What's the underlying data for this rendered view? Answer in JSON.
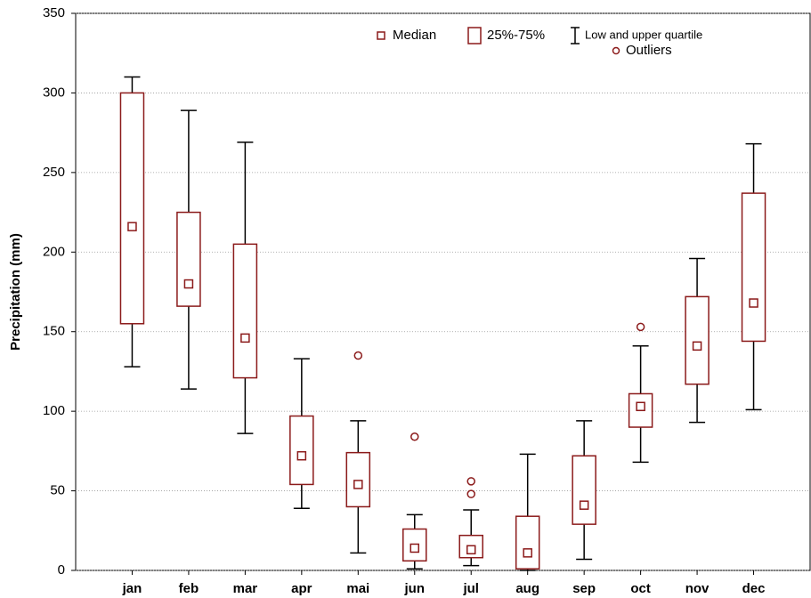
{
  "chart_data": {
    "type": "box",
    "y_label": "Precipitation (mm)",
    "categories": [
      "jan",
      "feb",
      "mar",
      "apr",
      "mai",
      "jun",
      "jul",
      "aug",
      "sep",
      "oct",
      "nov",
      "dec"
    ],
    "median": [
      216,
      180,
      146,
      72,
      54,
      14,
      13,
      11,
      41,
      103,
      141,
      168
    ],
    "q1": [
      155,
      166,
      121,
      54,
      40,
      6,
      8,
      1,
      29,
      90,
      117,
      144
    ],
    "q3": [
      300,
      225,
      205,
      97,
      74,
      26,
      22,
      34,
      72,
      111,
      172,
      237
    ],
    "low": [
      128,
      114,
      86,
      39,
      11,
      1,
      3,
      0,
      7,
      68,
      93,
      101
    ],
    "high": [
      310,
      289,
      269,
      133,
      94,
      35,
      38,
      73,
      94,
      141,
      196,
      268
    ],
    "outliers": [
      [],
      [],
      [],
      [],
      [
        135
      ],
      [
        84
      ],
      [
        56,
        48
      ],
      [],
      [],
      [
        153
      ],
      [],
      []
    ],
    "legend": {
      "median": "Median",
      "box": "25%-75%",
      "whisker": "Low and upper quartile",
      "outliers": "Outliers"
    },
    "color": "#8b1a1a",
    "whisker_color": "#000000",
    "ylim": [
      0,
      350
    ],
    "yticks": [
      0,
      50,
      100,
      150,
      200,
      250,
      300,
      350
    ],
    "grid": true
  }
}
